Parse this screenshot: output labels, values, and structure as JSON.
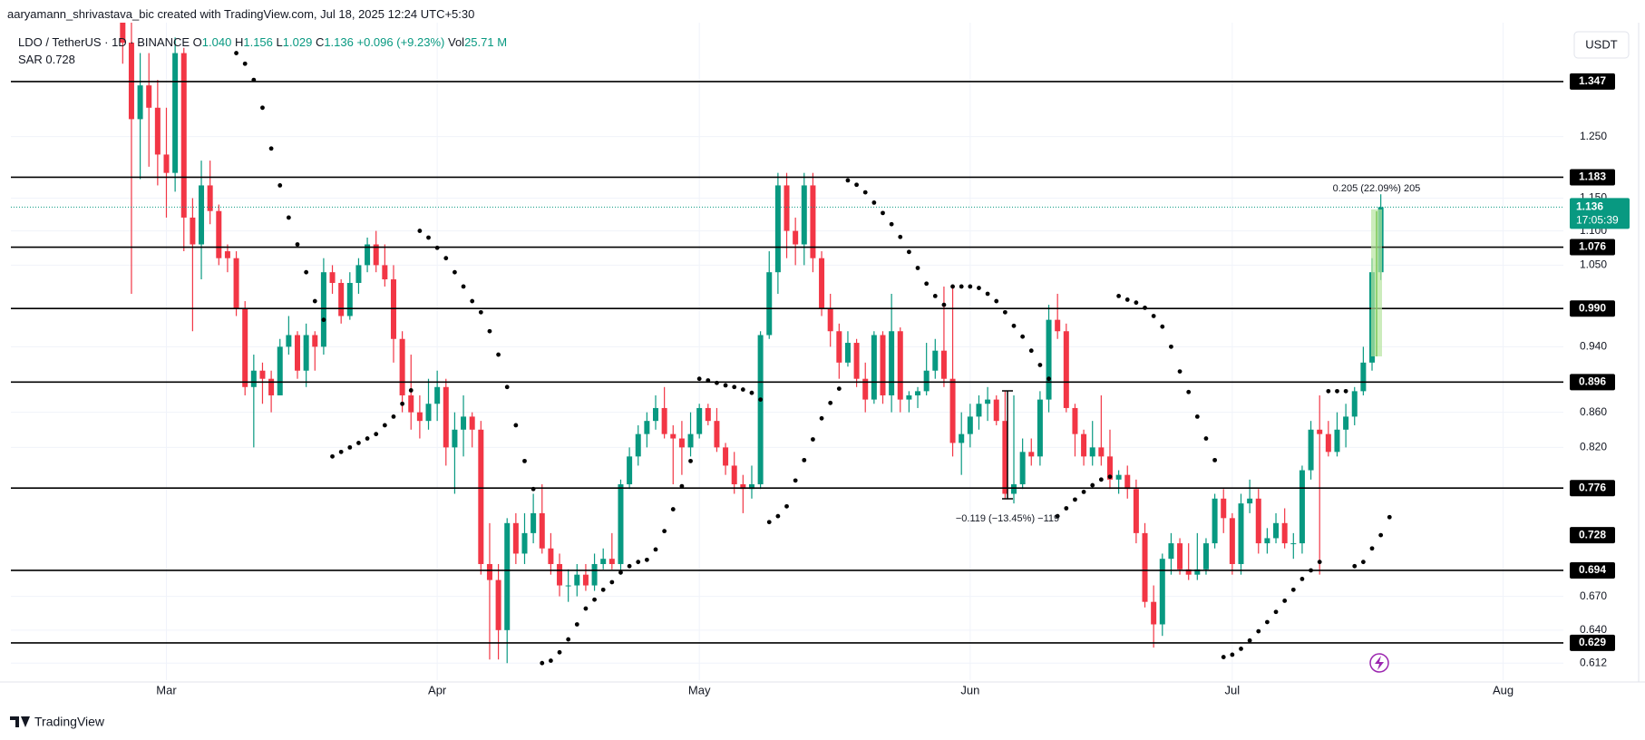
{
  "header": {
    "credit": "aaryamann_shrivastava_bic created with TradingView.com, Jul 18, 2025 12:24 UTC+5:30",
    "symbol": "LDO / TetherUS · 1D · BINANCE",
    "ohlc": [
      {
        "label": "O",
        "value": "1.040"
      },
      {
        "label": "H",
        "value": "1.156"
      },
      {
        "label": "L",
        "value": "1.029"
      },
      {
        "label": "C",
        "value": "1.136"
      }
    ],
    "change": "+0.096 (+9.23%)",
    "volume_label": "Vol",
    "volume": "25.71 M",
    "sar_label": "SAR",
    "currency": "USDT",
    "footer": "TradingView"
  },
  "chart_data": {
    "type": "candlestick",
    "log_scale": true,
    "grid": true,
    "up_color": "#089981",
    "down_color": "#f23645",
    "xlim": [
      -12.8,
      164.9
    ],
    "xticks": [
      {
        "value": 5,
        "label": "Mar"
      },
      {
        "value": 36,
        "label": "Apr"
      },
      {
        "value": 66,
        "label": "May"
      },
      {
        "value": 97,
        "label": "Jun"
      },
      {
        "value": 127,
        "label": "Jul"
      },
      {
        "value": 158,
        "label": "Aug"
      }
    ],
    "ylim": [
      0.598,
      1.459
    ],
    "yticks": [
      {
        "value": 1.25,
        "label": "1.250"
      },
      {
        "value": 1.15,
        "label": "1.150"
      },
      {
        "value": 1.1,
        "label": "1.100"
      },
      {
        "value": 1.05,
        "label": "1.050"
      },
      {
        "value": 0.94,
        "label": "0.940"
      },
      {
        "value": 0.86,
        "label": "0.860"
      },
      {
        "value": 0.82,
        "label": "0.820"
      },
      {
        "value": 0.67,
        "label": "0.670"
      },
      {
        "value": 0.64,
        "label": "0.640"
      },
      0.612
    ],
    "open": [
      1.55,
      1.42,
      1.28,
      1.34,
      1.3,
      1.22,
      1.19,
      1.4,
      1.12,
      1.08,
      1.17,
      1.13,
      1.07,
      1.06,
      0.99,
      0.89,
      0.91,
      0.9,
      0.88,
      0.94,
      0.955,
      0.91,
      0.955,
      0.94,
      1.04,
      1.025,
      0.98,
      1.025,
      1.05,
      1.08,
      1.05,
      1.03,
      0.95,
      0.88,
      0.86,
      0.85,
      0.87,
      0.89,
      0.82,
      0.84,
      0.855,
      0.84,
      0.7,
      0.685,
      0.64,
      0.74,
      0.71,
      0.73,
      0.75,
      0.715,
      0.7,
      0.68,
      0.68,
      0.69,
      0.68,
      0.7,
      0.705,
      0.7,
      0.78,
      0.81,
      0.835,
      0.85,
      0.865,
      0.835,
      0.83,
      0.82,
      0.835,
      0.865,
      0.85,
      0.82,
      0.8,
      0.78,
      0.775,
      0.78,
      0.955,
      1.04,
      1.17,
      1.1,
      1.08,
      1.17,
      1.06,
      0.99,
      0.96,
      0.92,
      0.945,
      0.9,
      0.875,
      0.955,
      0.88,
      0.96,
      0.875,
      0.88,
      0.885,
      0.91,
      0.935,
      0.9,
      0.825,
      0.835,
      0.855,
      0.87,
      0.875,
      0.85,
      0.77,
      0.78,
      0.815,
      0.81,
      0.875,
      0.975,
      0.96,
      0.865,
      0.835,
      0.81,
      0.82,
      0.81,
      0.785,
      0.79,
      0.775,
      0.73,
      0.665,
      0.645,
      0.705,
      0.72,
      0.695,
      0.69,
      0.695,
      0.72,
      0.765,
      0.745,
      0.7,
      0.76,
      0.765,
      0.72,
      0.725,
      0.74,
      0.72,
      0.72,
      0.795,
      0.84,
      0.835,
      0.815,
      0.84,
      0.855,
      0.885,
      0.92,
      1.04
    ],
    "high": [
      1.6,
      1.46,
      1.4,
      1.4,
      1.35,
      1.3,
      1.43,
      1.41,
      1.15,
      1.21,
      1.21,
      1.14,
      1.08,
      1.07,
      1.0,
      0.93,
      0.92,
      0.91,
      0.95,
      0.98,
      0.96,
      0.97,
      0.96,
      1.06,
      1.05,
      1.03,
      1.04,
      1.06,
      1.09,
      1.1,
      1.08,
      1.05,
      0.96,
      0.93,
      0.88,
      0.9,
      0.91,
      0.9,
      0.86,
      0.88,
      0.86,
      0.85,
      0.74,
      0.7,
      0.745,
      0.75,
      0.75,
      0.77,
      0.78,
      0.73,
      0.71,
      0.695,
      0.7,
      0.7,
      0.71,
      0.715,
      0.73,
      0.785,
      0.82,
      0.845,
      0.86,
      0.88,
      0.89,
      0.845,
      0.85,
      0.86,
      0.87,
      0.87,
      0.865,
      0.825,
      0.815,
      0.79,
      0.8,
      0.96,
      1.07,
      1.19,
      1.19,
      1.12,
      1.19,
      1.19,
      1.07,
      1.01,
      0.97,
      0.96,
      0.95,
      0.92,
      0.96,
      0.96,
      1.01,
      0.965,
      0.885,
      0.89,
      0.945,
      0.95,
      1.02,
      1.02,
      0.86,
      0.87,
      0.88,
      0.89,
      0.88,
      0.885,
      0.88,
      0.83,
      0.83,
      0.885,
      0.995,
      1.01,
      0.97,
      0.87,
      0.84,
      0.85,
      0.88,
      0.84,
      0.795,
      0.8,
      0.785,
      0.74,
      0.68,
      0.71,
      0.73,
      0.725,
      0.72,
      0.73,
      0.725,
      0.77,
      0.775,
      0.75,
      0.77,
      0.785,
      0.775,
      0.735,
      0.75,
      0.755,
      0.73,
      0.8,
      0.85,
      0.88,
      0.85,
      0.86,
      0.87,
      0.89,
      0.94,
      1.06,
      1.156
    ],
    "low": [
      1.38,
      1.01,
      1.18,
      1.2,
      1.17,
      1.12,
      1.16,
      1.07,
      0.96,
      1.03,
      1.11,
      1.05,
      1.04,
      0.98,
      0.88,
      0.82,
      0.87,
      0.86,
      0.88,
      0.93,
      0.9,
      0.89,
      0.91,
      0.93,
      1.01,
      0.97,
      0.975,
      1.01,
      1.04,
      1.04,
      1.02,
      0.92,
      0.86,
      0.84,
      0.83,
      0.84,
      0.85,
      0.8,
      0.77,
      0.81,
      0.82,
      0.69,
      0.615,
      0.615,
      0.612,
      0.7,
      0.7,
      0.72,
      0.71,
      0.69,
      0.67,
      0.665,
      0.67,
      0.675,
      0.675,
      0.695,
      0.695,
      0.69,
      0.775,
      0.8,
      0.82,
      0.84,
      0.83,
      0.78,
      0.79,
      0.81,
      0.83,
      0.845,
      0.815,
      0.79,
      0.77,
      0.75,
      0.765,
      0.775,
      0.95,
      1.01,
      1.06,
      1.05,
      1.05,
      1.04,
      0.98,
      0.94,
      0.9,
      0.915,
      0.89,
      0.86,
      0.87,
      0.87,
      0.86,
      0.86,
      0.86,
      0.865,
      0.88,
      0.9,
      0.89,
      0.81,
      0.79,
      0.82,
      0.84,
      0.85,
      0.845,
      0.765,
      0.76,
      0.775,
      0.8,
      0.8,
      0.86,
      0.95,
      0.86,
      0.81,
      0.8,
      0.8,
      0.8,
      0.775,
      0.77,
      0.765,
      0.72,
      0.66,
      0.625,
      0.635,
      0.69,
      0.69,
      0.685,
      0.685,
      0.69,
      0.715,
      0.73,
      0.69,
      0.69,
      0.75,
      0.71,
      0.71,
      0.72,
      0.715,
      0.705,
      0.71,
      0.785,
      0.69,
      0.81,
      0.81,
      0.82,
      0.845,
      0.88,
      0.91,
      1.029
    ],
    "close": [
      1.42,
      1.28,
      1.34,
      1.3,
      1.22,
      1.19,
      1.4,
      1.12,
      1.08,
      1.17,
      1.13,
      1.06,
      1.06,
      0.99,
      0.89,
      0.91,
      0.9,
      0.88,
      0.94,
      0.955,
      0.91,
      0.955,
      0.94,
      1.04,
      1.025,
      0.98,
      1.025,
      1.05,
      1.08,
      1.05,
      1.03,
      0.95,
      0.88,
      0.86,
      0.85,
      0.87,
      0.89,
      0.82,
      0.84,
      0.855,
      0.84,
      0.7,
      0.685,
      0.64,
      0.74,
      0.71,
      0.73,
      0.75,
      0.715,
      0.7,
      0.68,
      0.68,
      0.69,
      0.68,
      0.7,
      0.705,
      0.7,
      0.78,
      0.81,
      0.835,
      0.85,
      0.865,
      0.835,
      0.83,
      0.82,
      0.835,
      0.865,
      0.85,
      0.82,
      0.8,
      0.78,
      0.775,
      0.78,
      0.955,
      1.04,
      1.17,
      1.1,
      1.08,
      1.17,
      1.06,
      0.99,
      0.96,
      0.92,
      0.945,
      0.9,
      0.875,
      0.955,
      0.88,
      0.96,
      0.875,
      0.88,
      0.885,
      0.91,
      0.935,
      0.9,
      0.825,
      0.835,
      0.855,
      0.87,
      0.875,
      0.85,
      0.77,
      0.78,
      0.815,
      0.81,
      0.875,
      0.975,
      0.96,
      0.865,
      0.835,
      0.81,
      0.82,
      0.81,
      0.785,
      0.79,
      0.775,
      0.73,
      0.665,
      0.645,
      0.705,
      0.72,
      0.695,
      0.69,
      0.695,
      0.72,
      0.765,
      0.745,
      0.7,
      0.76,
      0.765,
      0.72,
      0.725,
      0.74,
      0.72,
      0.72,
      0.795,
      0.84,
      0.835,
      0.815,
      0.84,
      0.855,
      0.885,
      0.92,
      1.04,
      1.136
    ],
    "sar": {
      "name": "SAR",
      "color": "#000000",
      "values": [
        null,
        null,
        null,
        null,
        null,
        null,
        null,
        null,
        null,
        null,
        null,
        null,
        null,
        1.4,
        1.38,
        1.35,
        1.3,
        1.23,
        1.17,
        1.12,
        1.08,
        1.04,
        1.0,
        0.975,
        0.81,
        0.815,
        0.82,
        0.825,
        0.83,
        0.835,
        0.845,
        0.855,
        0.87,
        0.886,
        1.1,
        1.09,
        1.075,
        1.06,
        1.04,
        1.02,
        1.0,
        0.985,
        0.96,
        0.93,
        0.89,
        0.845,
        0.805,
        0.775,
        0.612,
        0.614,
        0.621,
        0.632,
        0.645,
        0.659,
        0.667,
        0.676,
        0.683,
        0.692,
        0.698,
        0.702,
        0.704,
        0.714,
        0.732,
        0.754,
        0.778,
        0.805,
        0.9,
        0.898,
        0.895,
        0.892,
        0.89,
        0.887,
        0.883,
        0.875,
        0.741,
        0.747,
        0.757,
        0.784,
        0.806,
        0.829,
        0.853,
        0.871,
        0.888,
        1.178,
        1.171,
        1.159,
        1.143,
        1.127,
        1.11,
        1.091,
        1.069,
        1.046,
        1.024,
        1.007,
        0.995,
        1.02,
        1.02,
        1.02,
        1.018,
        1.01,
        1.0,
        0.985,
        0.967,
        0.953,
        0.935,
        0.917,
        0.9,
        0.747,
        0.755,
        0.764,
        0.772,
        0.779,
        0.785,
        0.788,
        1.007,
        1.002,
        0.998,
        0.991,
        0.98,
        0.966,
        0.94,
        0.909,
        0.884,
        0.855,
        0.83,
        0.806,
        0.617,
        0.619,
        0.624,
        0.631,
        0.639,
        0.647,
        0.656,
        0.666,
        0.676,
        0.686,
        0.694,
        0.702,
        0.885,
        0.885,
        0.885,
        0.698,
        0.702,
        0.715,
        0.728,
        0.746
      ]
    },
    "levels": [
      1.347,
      1.183,
      1.076,
      {
        "value": 0.99,
        "label": "0.990"
      },
      0.896,
      0.776,
      0.694,
      0.629
    ],
    "countdown": "17:05:39",
    "annotations": [
      "0.205 (22.09%) 205",
      "−0.119 (−13.45%) −119"
    ]
  }
}
